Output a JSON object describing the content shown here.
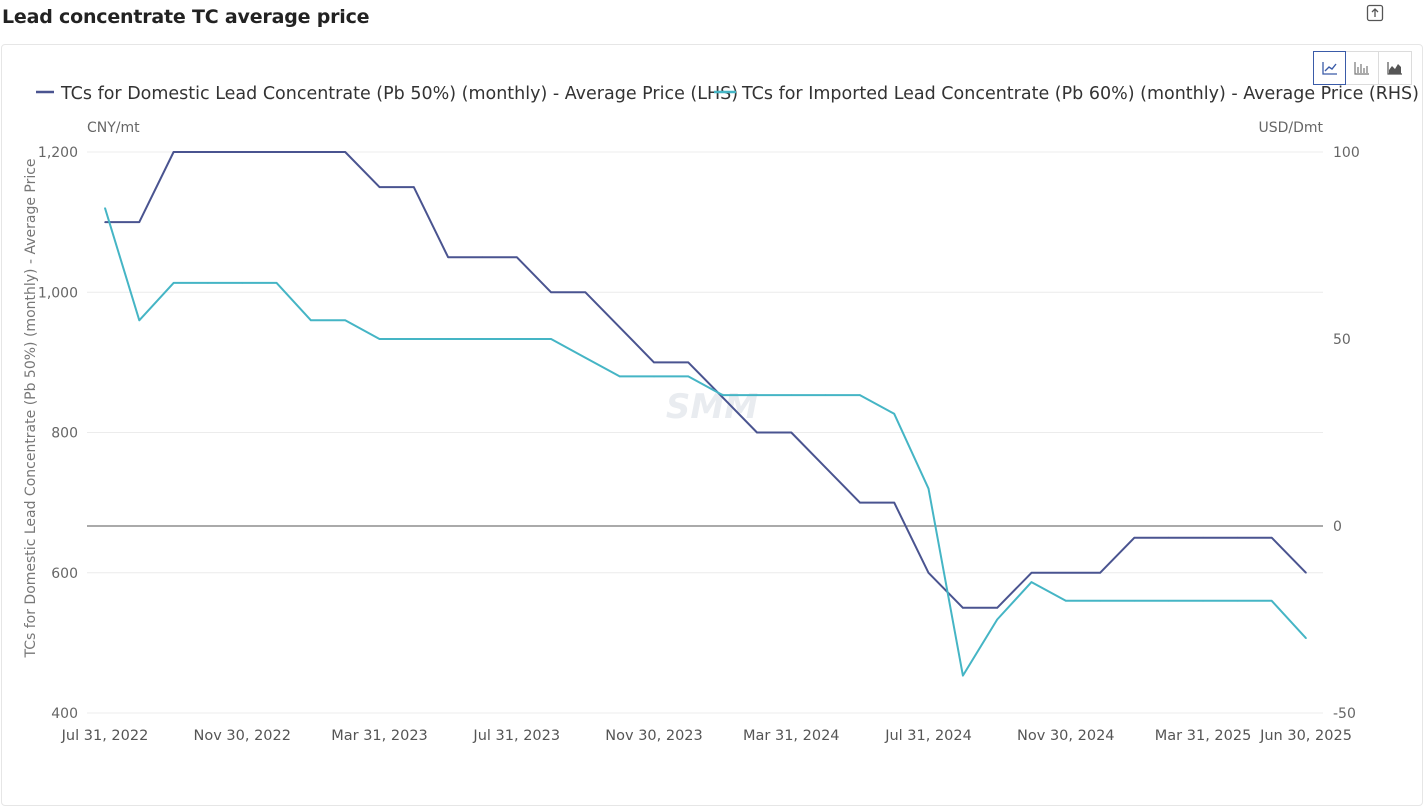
{
  "page": {
    "title": "Lead concentrate TC average price",
    "watermark": "SMM"
  },
  "toolbar": {
    "buttons": [
      {
        "icon": "line-chart-icon",
        "active": true
      },
      {
        "icon": "bar-chart-icon",
        "active": false
      },
      {
        "icon": "area-chart-icon",
        "active": false
      }
    ],
    "export_icon": "export-icon"
  },
  "chart_data": {
    "type": "line",
    "left_axis": {
      "unit": "CNY/mt",
      "label": "TCs for Domestic Lead Concentrate (Pb 50%) (monthly) - Average Price",
      "range": [
        400,
        1200
      ],
      "ticks": [
        "400",
        "600",
        "800",
        "1,000",
        "1,200"
      ],
      "tick_values": [
        400,
        600,
        800,
        1000,
        1200
      ]
    },
    "right_axis": {
      "unit": "USD/Dmt",
      "range": [
        -50,
        100
      ],
      "ticks": [
        "-50",
        "0",
        "50",
        "100"
      ],
      "tick_values": [
        -50,
        0,
        50,
        100
      ]
    },
    "x_ticks": [
      "Jul 31, 2022",
      "Nov 30, 2022",
      "Mar 31, 2023",
      "Jul 31, 2023",
      "Nov 30, 2023",
      "Mar 31, 2024",
      "Jul 31, 2024",
      "Nov 30, 2024",
      "Mar 31, 2025",
      "Jun 30, 2025"
    ],
    "x_tick_index": [
      0,
      4,
      8,
      12,
      16,
      20,
      24,
      28,
      32,
      35
    ],
    "grid": "horizontal",
    "legend_position": "top",
    "series": [
      {
        "name": "TCs for Domestic Lead Concentrate (Pb 50%) (monthly) - Average Price (LHS)",
        "axis": "left",
        "color": "#4a5490",
        "values": [
          1100,
          1100,
          1200,
          1200,
          1200,
          1200,
          1200,
          1200,
          1150,
          1150,
          1050,
          1050,
          1050,
          1000,
          1000,
          950,
          900,
          900,
          850,
          800,
          800,
          750,
          700,
          700,
          600,
          550,
          550,
          600,
          600,
          600,
          650,
          650,
          650,
          650,
          650,
          600
        ]
      },
      {
        "name": "TCs for Imported Lead Concentrate (Pb 60%) (monthly) - Average Price (RHS)",
        "axis": "right",
        "color": "#45b5c5",
        "values": [
          85,
          55,
          65,
          65,
          65,
          65,
          55,
          55,
          50,
          50,
          50,
          50,
          50,
          50,
          45,
          40,
          40,
          40,
          35,
          35,
          35,
          35,
          35,
          30,
          10,
          -40,
          -25,
          -15,
          -20,
          -20,
          -20,
          -20,
          -20,
          -20,
          -20,
          -30
        ]
      }
    ]
  }
}
